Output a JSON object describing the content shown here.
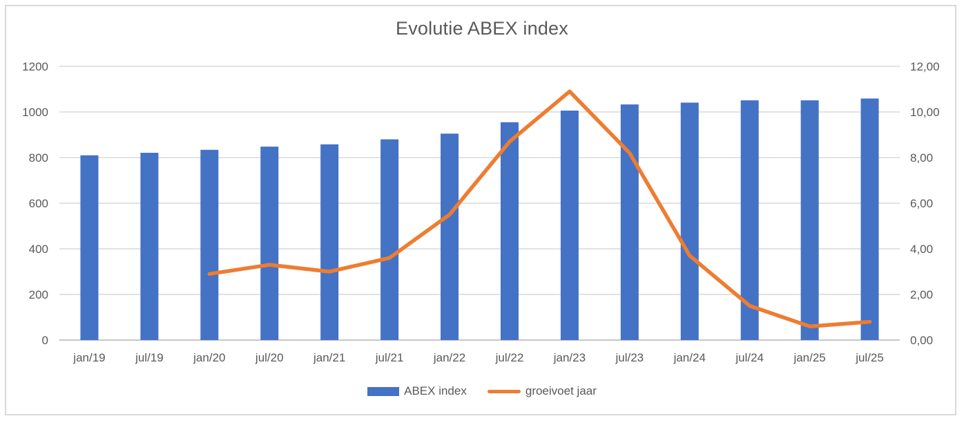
{
  "chart_data": {
    "type": "combo",
    "title": "Evolutie ABEX index",
    "categories": [
      "jan/19",
      "jul/19",
      "jan/20",
      "jul/20",
      "jan/21",
      "jul/21",
      "jan/22",
      "jul/22",
      "jan/23",
      "jul/23",
      "jan/24",
      "jul/24",
      "jan/25",
      "jul/25"
    ],
    "series": [
      {
        "name": "ABEX index",
        "type": "bar",
        "axis": "left",
        "color": "#4472C4",
        "values": [
          810,
          821,
          834,
          848,
          858,
          880,
          905,
          955,
          1006,
          1033,
          1041,
          1051,
          1051,
          1059
        ]
      },
      {
        "name": "groeivoet jaar",
        "type": "line",
        "axis": "right",
        "color": "#ED7D31",
        "values": [
          null,
          null,
          2.9,
          3.3,
          3.0,
          3.6,
          5.5,
          8.7,
          10.9,
          8.2,
          3.7,
          1.5,
          0.6,
          0.8
        ]
      }
    ],
    "y_left": {
      "min": 0,
      "max": 1200,
      "step": 200,
      "tick_labels": [
        "0",
        "200",
        "400",
        "600",
        "800",
        "1000",
        "1200"
      ]
    },
    "y_right": {
      "min": 0,
      "max": 12,
      "step": 2,
      "tick_labels": [
        "0,00",
        "2,00",
        "4,00",
        "6,00",
        "8,00",
        "10,00",
        "12,00"
      ]
    },
    "grid": true,
    "legend_position": "bottom",
    "colors": {
      "bar": "#4472C4",
      "line": "#ED7D31",
      "gridline": "#D9D9D9",
      "axis_line": "#C8C6C6",
      "tick_text": "#595959",
      "title_text": "#595959",
      "frame_border": "#D9D9D9"
    }
  }
}
